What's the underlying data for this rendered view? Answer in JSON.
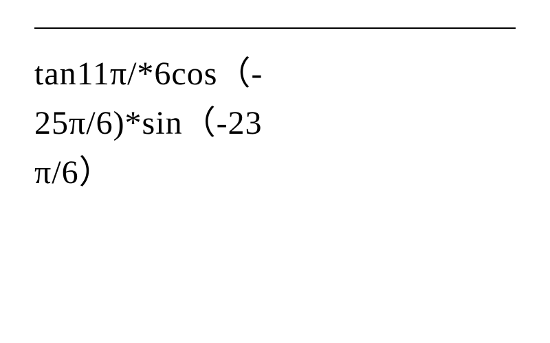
{
  "expression": {
    "line1": "tan11π/*6cos（-",
    "line2": "25π/6)*sin（-23",
    "line3": "π/6）"
  },
  "styling": {
    "font_size": 48,
    "font_family": "Times New Roman",
    "text_color": "#000000",
    "background_color": "#ffffff",
    "separator_color": "#000000",
    "separator_height": 2
  }
}
